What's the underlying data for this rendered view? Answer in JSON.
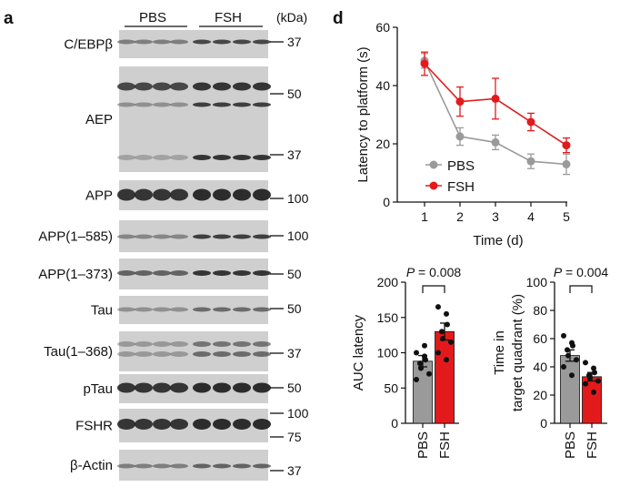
{
  "panel_labels": {
    "a": "a",
    "d": "d"
  },
  "blot": {
    "groups": [
      "PBS",
      "FSH"
    ],
    "unit": "(kDa)",
    "rows": [
      {
        "label": "C/EBPβ",
        "markers": [
          "37"
        ]
      },
      {
        "label": "AEP",
        "markers": [
          "50",
          "37"
        ]
      },
      {
        "label": "APP",
        "markers": [
          "100"
        ]
      },
      {
        "label": "APP(1–585)",
        "markers": [
          "100"
        ]
      },
      {
        "label": "APP(1–373)",
        "markers": [
          "50"
        ]
      },
      {
        "label": "Tau",
        "markers": [
          "50"
        ]
      },
      {
        "label": "Tau(1–368)",
        "markers": [
          "37"
        ]
      },
      {
        "label": "pTau",
        "markers": [
          "50"
        ]
      },
      {
        "label": "FSHR",
        "markers": [
          "100",
          "75"
        ]
      },
      {
        "label": "β-Actin",
        "markers": [
          "37"
        ]
      }
    ]
  },
  "chart_data": [
    {
      "type": "line",
      "xlabel": "Time (d)",
      "ylabel": "Latency to platform (s)",
      "x": [
        1,
        2,
        3,
        4,
        5
      ],
      "ylim": [
        0,
        60
      ],
      "yticks": [
        0,
        20,
        40,
        60
      ],
      "legend": "lower-left",
      "series": [
        {
          "name": "PBS",
          "color": "#9a9a9a",
          "values": [
            48.5,
            22.5,
            20.5,
            14,
            13
          ],
          "err": [
            2.5,
            3,
            2.5,
            2.5,
            3.5
          ]
        },
        {
          "name": "FSH",
          "color": "#e31a1c",
          "values": [
            47.5,
            34.5,
            35.5,
            27.5,
            19.5
          ],
          "err": [
            4,
            5,
            7,
            3,
            2.5
          ]
        }
      ]
    },
    {
      "type": "bar",
      "ylabel": "AUC latency",
      "categories": [
        "PBS",
        "FSH"
      ],
      "ylim": [
        0,
        200
      ],
      "yticks": [
        0,
        50,
        100,
        150,
        200
      ],
      "annotation": "P = 0.008",
      "colors": [
        "#9a9a9a",
        "#e31a1c"
      ],
      "values": [
        88,
        130
      ],
      "err": [
        8,
        12
      ],
      "points": [
        [
          100,
          95,
          90,
          85,
          78,
          70,
          62,
          110
        ],
        [
          165,
          155,
          140,
          130,
          120,
          115,
          100,
          90
        ]
      ]
    },
    {
      "type": "bar",
      "ylabel": "Time in target quadrant (%)",
      "categories": [
        "PBS",
        "FSH"
      ],
      "ylim": [
        0,
        100
      ],
      "yticks": [
        0,
        20,
        40,
        60,
        80,
        100
      ],
      "annotation": "P = 0.004",
      "colors": [
        "#9a9a9a",
        "#e31a1c"
      ],
      "values": [
        48,
        33
      ],
      "err": [
        4,
        3
      ],
      "points": [
        [
          62,
          57,
          55,
          52,
          48,
          45,
          40,
          34
        ],
        [
          43,
          39,
          36,
          34,
          32,
          30,
          28,
          22
        ]
      ]
    }
  ]
}
